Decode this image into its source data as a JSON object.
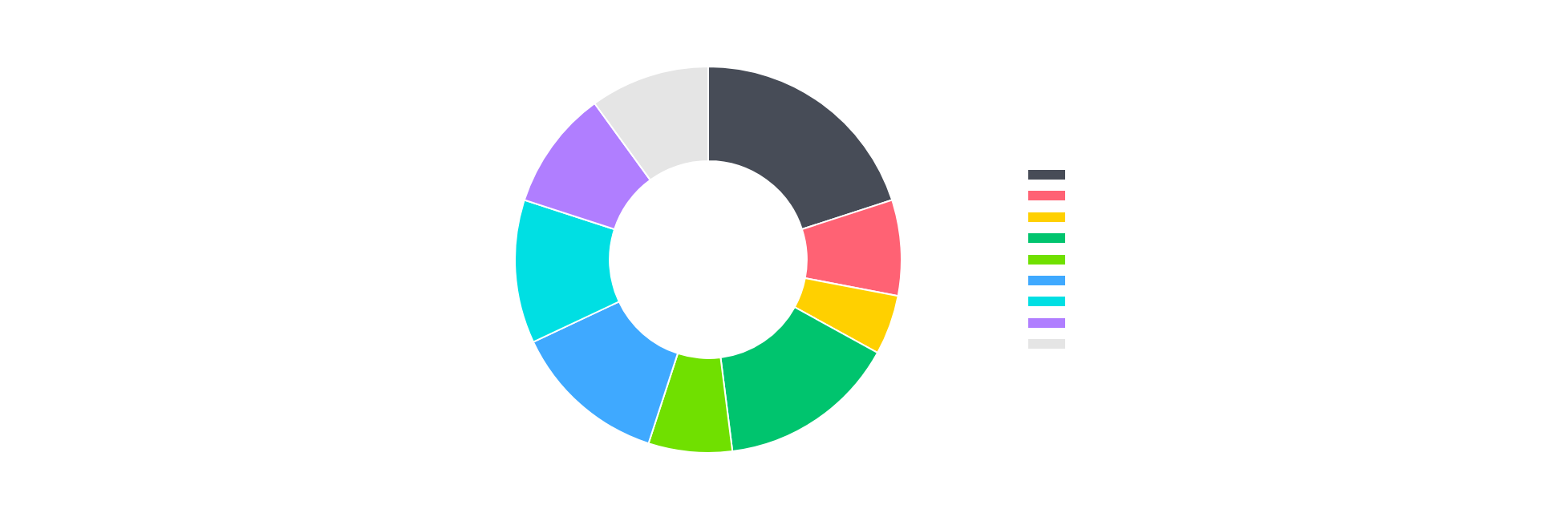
{
  "chart_data": {
    "type": "donut",
    "categories": [
      null,
      null,
      null,
      null,
      null,
      null,
      null,
      null,
      null
    ],
    "values": [
      20,
      8,
      5,
      15,
      7,
      13,
      12,
      10,
      10
    ],
    "colors": [
      "#474c57",
      "#ff6274",
      "#ffd000",
      "#00c46e",
      "#70e000",
      "#3fa9ff",
      "#00dfe3",
      "#b07eff",
      "#e5e5e5"
    ]
  }
}
